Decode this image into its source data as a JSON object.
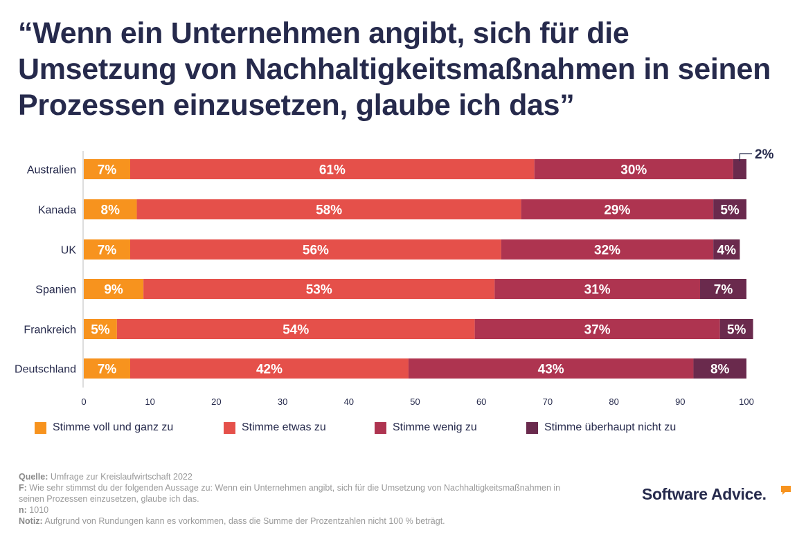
{
  "title": "“Wenn ein Unternehmen angibt, sich für die Umsetzung von Nachhaltigkeitsmaßnahmen in seinen Prozessen einzusetzen, glaube ich das”",
  "colors": {
    "voll": "#f7931e",
    "etwas": "#e5504a",
    "wenig": "#ae3450",
    "nicht": "#6a2a4d",
    "title": "#262a4c",
    "logo_accent": "#f7931e"
  },
  "chart_data": {
    "type": "bar",
    "orientation": "horizontal",
    "stacked": true,
    "categories": [
      "Australien",
      "Kanada",
      "UK",
      "Spanien",
      "Frankreich",
      "Deutschland"
    ],
    "series": [
      {
        "name": "Stimme voll und ganz zu",
        "color": "#f7931e",
        "values": [
          7,
          8,
          7,
          9,
          5,
          7
        ],
        "labels": [
          "7%",
          "8%",
          "7%",
          "9%",
          "5%",
          "7%"
        ]
      },
      {
        "name": "Stimme etwas zu",
        "color": "#e5504a",
        "values": [
          61,
          58,
          56,
          53,
          54,
          42
        ],
        "labels": [
          "61%",
          "58%",
          "56%",
          "53%",
          "54%",
          "42%"
        ]
      },
      {
        "name": "Stimme wenig zu",
        "color": "#ae3450",
        "values": [
          30,
          29,
          32,
          31,
          37,
          43
        ],
        "labels": [
          "30%",
          "29%",
          "32%",
          "31%",
          "37%",
          "43%"
        ]
      },
      {
        "name": "Stimme überhaupt nicht zu",
        "color": "#6a2a4d",
        "values": [
          2,
          5,
          4,
          7,
          5,
          8
        ],
        "labels": [
          "2%",
          "5%",
          "4%",
          "7%",
          "5%",
          "8%"
        ]
      }
    ],
    "xlim": [
      0,
      100
    ],
    "xticks": [
      "0",
      "10",
      "20",
      "30",
      "40",
      "50",
      "60",
      "70",
      "80",
      "90",
      "100"
    ],
    "legend_position": "bottom"
  },
  "legend": [
    {
      "label": "Stimme voll und ganz zu",
      "color": "#f7931e"
    },
    {
      "label": "Stimme etwas zu",
      "color": "#e5504a"
    },
    {
      "label": "Stimme wenig zu",
      "color": "#ae3450"
    },
    {
      "label": "Stimme überhaupt nicht zu",
      "color": "#6a2a4d"
    }
  ],
  "footnotes": {
    "source_label": "Quelle:",
    "source_text": "Umfrage zur Kreislaufwirtschaft 2022",
    "question_label": "F:",
    "question_text": "Wie sehr stimmst du der folgenden Aussage zu: Wenn ein Unternehmen angibt, sich für die Umsetzung von Nachhaltigkeitsmaßnahmen in seinen Prozessen einzusetzen, glaube ich das.",
    "n_label": "n:",
    "n_text": "1010",
    "note_label": "Notiz:",
    "note_text": "Aufgrund von Rundungen kann es vorkommen, dass die Summe der Prozentzahlen nicht 100 % beträgt."
  },
  "logo": {
    "text": "Software Advice."
  }
}
